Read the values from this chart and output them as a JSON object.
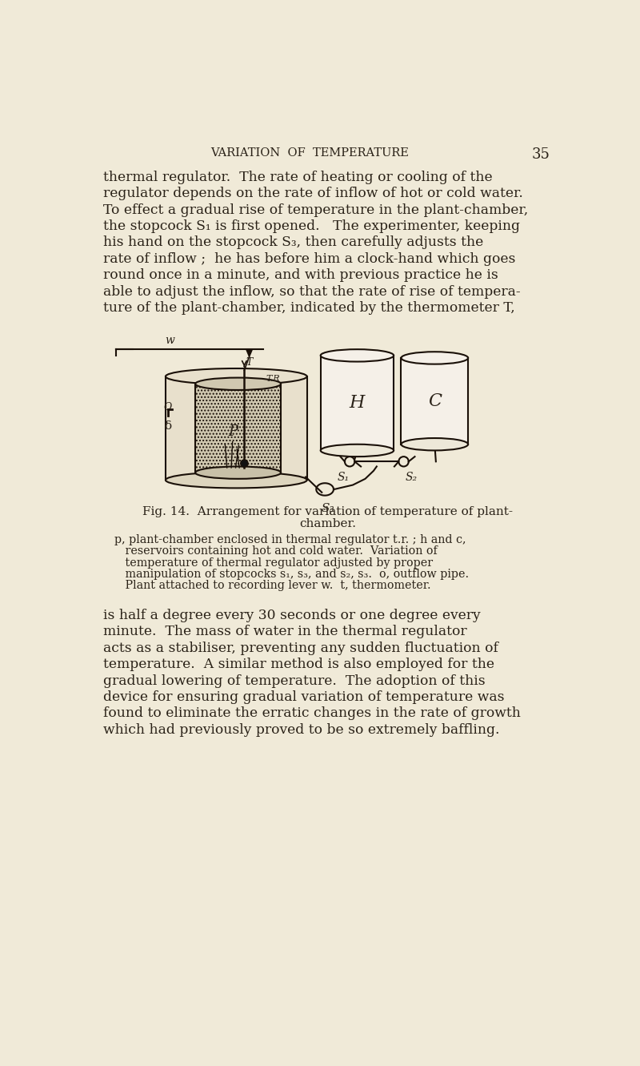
{
  "bg_color": "#f0ead8",
  "text_color": "#2a2218",
  "page_number": "35",
  "header": "VARIATION  OF  TEMPERATURE",
  "para1_lines": [
    "thermal regulator.  The rate of heating or cooling of the",
    "regulator depends on the rate of inflow of hot or cold water.",
    "To effect a gradual rise of temperature in the plant-chamber,",
    "the stopcock S₁ is first opened.   The experimenter, keeping",
    "his hand on the stopcock S₃, then carefully adjusts the",
    "rate of inflow ;  he has before him a clock-hand which goes",
    "round once in a minute, and with previous practice he is",
    "able to adjust the inflow, so that the rate of rise of tempera-",
    "ture of the plant-chamber, indicated by the thermometer T,"
  ],
  "para2_lines": [
    "is half a degree every 30 seconds or one degree every",
    "minute.  The mass of water in the thermal regulator",
    "acts as a stabiliser, preventing any sudden fluctuation of",
    "temperature.  A similar method is also employed for the",
    "gradual lowering of temperature.  The adoption of this",
    "device for ensuring gradual variation of temperature was",
    "found to eliminate the erratic changes in the rate of growth",
    "which had previously proved to be so extremely baffling."
  ],
  "fig_caption_line1": "Fig. 14.  Arrangement for variation of temperature of plant-",
  "fig_caption_line2": "chamber.",
  "fig_legend_lines": [
    "p, plant-chamber enclosed in thermal regulator t.r. ; h and c,",
    "   reservoirs containing hot and cold water.  Variation of",
    "   temperature of thermal regulator adjusted by proper",
    "   manipulation of stopcocks s₁, s₃, and s₂, s₃.  o, outflow pipe.",
    "   Plant attached to recording lever w.  t, thermometer."
  ]
}
